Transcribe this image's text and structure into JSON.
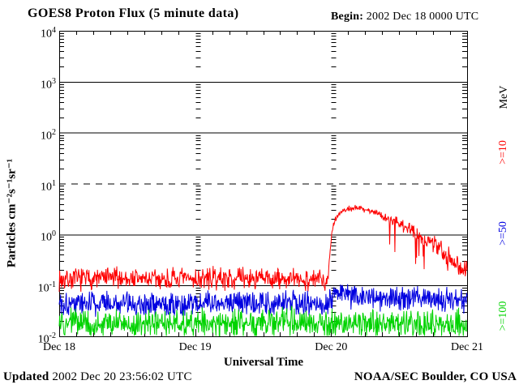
{
  "header": {
    "title": "GOES8 Proton Flux (5 minute data)",
    "begin_label": "Begin:",
    "begin_value": "2002 Dec 18 0000 UTC"
  },
  "footer": {
    "updated_label": "Updated",
    "updated_value": "2002 Dec 20 23:56:02 UTC",
    "source": "NOAA/SEC Boulder, CO USA"
  },
  "chart_data": {
    "type": "line",
    "title": "GOES8 Proton Flux (5 minute data)",
    "xlabel": "Universal Time",
    "ylabel": "Particles cm⁻²s⁻¹sr⁻¹",
    "x_unit": "hours since 2002 Dec 18 0000 UTC",
    "xlim_hours": [
      0,
      72
    ],
    "x_minor_tick_hours": 3,
    "x_day_ticks": [
      {
        "t": 0,
        "label": "Dec 18"
      },
      {
        "t": 24,
        "label": "Dec 19"
      },
      {
        "t": 48,
        "label": "Dec 20"
      },
      {
        "t": 72,
        "label": "Dec 21"
      }
    ],
    "ylog_lim": [
      -2,
      4
    ],
    "y_tick_base": "10",
    "y_tick_exponents": [
      4,
      3,
      2,
      1,
      0,
      -1,
      -2
    ],
    "gridlines_solid_exponents": [
      3,
      2,
      0,
      -1
    ],
    "gridlines_dashed_exponents": [
      1
    ],
    "legend": {
      "units_label": "MeV",
      "entries": [
        {
          "label": ">=10",
          "color": "#fe0000"
        },
        {
          "label": ">=50",
          "color": "#0000e0"
        },
        {
          "label": ">=100",
          "color": "#00d300"
        }
      ]
    },
    "samples_per_hour": 12,
    "series": [
      {
        "name": "protons >=10 MeV",
        "color": "#fe0000",
        "seed": 7,
        "profile_keypoints": [
          [
            0,
            0.13
          ],
          [
            10,
            0.14
          ],
          [
            20,
            0.13
          ],
          [
            30,
            0.14
          ],
          [
            40,
            0.13
          ],
          [
            47.2,
            0.13
          ],
          [
            47.6,
            0.22
          ],
          [
            47.9,
            0.6
          ],
          [
            48.2,
            1.3
          ],
          [
            48.6,
            1.9
          ],
          [
            49.2,
            2.4
          ],
          [
            50,
            2.9
          ],
          [
            51,
            3.2
          ],
          [
            52.5,
            3.35
          ],
          [
            54,
            3.1
          ],
          [
            56,
            2.7
          ],
          [
            58,
            2.1
          ],
          [
            60,
            1.6
          ],
          [
            62,
            1.25
          ],
          [
            64,
            0.95
          ],
          [
            66,
            0.65
          ],
          [
            68,
            0.45
          ],
          [
            70,
            0.3
          ],
          [
            71,
            0.23
          ],
          [
            72,
            0.17
          ]
        ],
        "noise_segments": [
          [
            0,
            47.5,
            0.26,
            0.26
          ],
          [
            47.5,
            56,
            0.07,
            0.07
          ],
          [
            56,
            72,
            0.1,
            0.28
          ]
        ],
        "down_spikes": {
          "window": [
            58,
            72
          ],
          "prob": 0.06,
          "max_depth_log10": 0.8
        }
      },
      {
        "name": "protons >=50 MeV",
        "color": "#0000e0",
        "seed": 101,
        "profile_keypoints": [
          [
            0,
            0.045
          ],
          [
            24,
            0.044
          ],
          [
            47.5,
            0.045
          ],
          [
            49,
            0.065
          ],
          [
            53,
            0.062
          ],
          [
            58,
            0.058
          ],
          [
            64,
            0.053
          ],
          [
            72,
            0.05
          ]
        ],
        "noise_segments": [
          [
            0,
            72,
            0.3,
            0.3
          ]
        ]
      },
      {
        "name": "protons >=100 MeV",
        "color": "#00d300",
        "seed": 4242,
        "profile_keypoints": [
          [
            0,
            0.018
          ],
          [
            24,
            0.018
          ],
          [
            48,
            0.018
          ],
          [
            72,
            0.018
          ]
        ],
        "noise_segments": [
          [
            0,
            72,
            0.34,
            0.34
          ]
        ]
      }
    ]
  }
}
